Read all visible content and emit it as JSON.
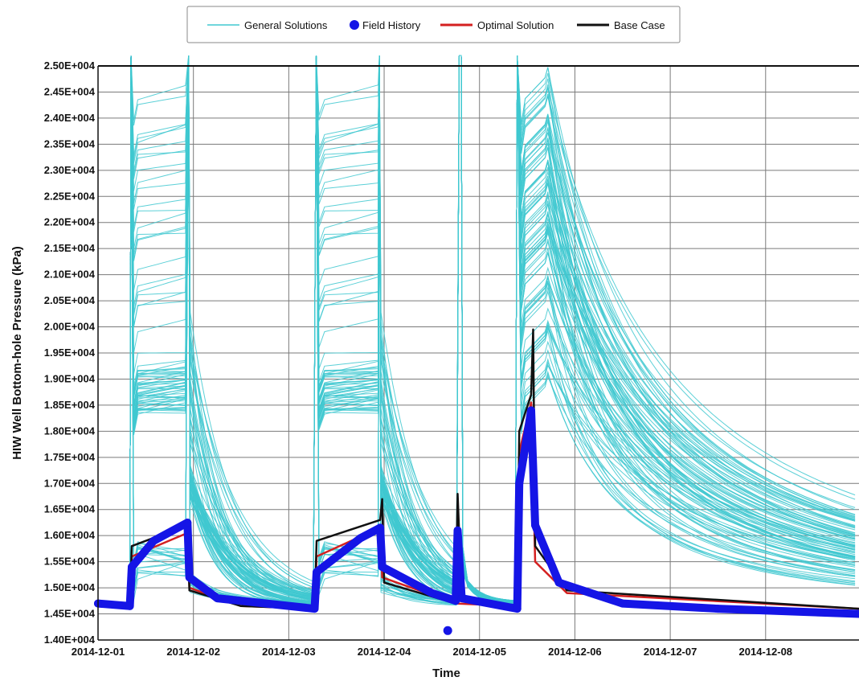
{
  "colors": {
    "general": "#40c8d0",
    "field": "#1515e6",
    "optimal": "#d42020",
    "base": "#111111",
    "grid": "#7a7a7a"
  },
  "legend": {
    "items": [
      {
        "label": "General Solutions",
        "kind": "line",
        "color": "#40c8d0"
      },
      {
        "label": "Field History",
        "kind": "dot",
        "color": "#1515e6"
      },
      {
        "label": "Optimal Solution",
        "kind": "line",
        "color": "#d42020"
      },
      {
        "label": "Base Case",
        "kind": "line",
        "color": "#111111"
      }
    ]
  },
  "chart_data": {
    "type": "line",
    "xlabel": "Time",
    "ylabel": "HIW Well Bottom-hole Pressure (kPa)",
    "ylim": [
      14000,
      25000
    ],
    "xlim": [
      "2014-12-01 00:00",
      "2014-12-08 23:30"
    ],
    "grid": true,
    "legend_position": "top",
    "y_ticks": [
      "1.40E+004",
      "1.45E+004",
      "1.50E+004",
      "1.55E+004",
      "1.60E+004",
      "1.65E+004",
      "1.70E+004",
      "1.75E+004",
      "1.80E+004",
      "1.85E+004",
      "1.90E+004",
      "1.95E+004",
      "2.00E+004",
      "2.05E+004",
      "2.10E+004",
      "2.15E+004",
      "2.20E+004",
      "2.25E+004",
      "2.30E+004",
      "2.35E+004",
      "2.40E+004",
      "2.45E+004",
      "2.50E+004"
    ],
    "x_ticks": [
      "2014-12-01",
      "2014-12-02",
      "2014-12-03",
      "2014-12-04",
      "2014-12-05",
      "2014-12-06",
      "2014-12-07",
      "2014-12-08"
    ],
    "series": [
      {
        "name": "General Solutions",
        "kind": "ensemble",
        "count": 90,
        "pressure_range_kPa": [
          14600,
          25000
        ]
      },
      {
        "name": "Field History",
        "points": [
          [
            "2014-12-01 00:00",
            14700
          ],
          [
            "2014-12-01 08:00",
            14650
          ],
          [
            "2014-12-01 08:30",
            15400
          ],
          [
            "2014-12-01 14:00",
            15900
          ],
          [
            "2014-12-01 22:30",
            16250
          ],
          [
            "2014-12-01 23:00",
            15200
          ],
          [
            "2014-12-02 06:00",
            14800
          ],
          [
            "2014-12-03 06:30",
            14600
          ],
          [
            "2014-12-03 07:00",
            15300
          ],
          [
            "2014-12-03 18:00",
            15950
          ],
          [
            "2014-12-03 23:00",
            16150
          ],
          [
            "2014-12-03 23:30",
            15400
          ],
          [
            "2014-12-04 12:00",
            14900
          ],
          [
            "2014-12-04 18:00",
            14750
          ],
          [
            "2014-12-04 18:30",
            16100
          ],
          [
            "2014-12-04 19:30",
            14800
          ],
          [
            "2014-12-05 09:30",
            14600
          ],
          [
            "2014-12-05 10:00",
            17000
          ],
          [
            "2014-12-05 13:00",
            18400
          ],
          [
            "2014-12-05 14:00",
            16200
          ],
          [
            "2014-12-05 20:00",
            15100
          ],
          [
            "2014-12-06 12:00",
            14700
          ],
          [
            "2014-12-07 12:00",
            14600
          ],
          [
            "2014-12-08 23:30",
            14500
          ]
        ],
        "outlier": [
          "2014-12-04 16:00",
          14180
        ]
      },
      {
        "name": "Optimal Solution",
        "points": [
          [
            "2014-12-01 00:00",
            14700
          ],
          [
            "2014-12-01 08:00",
            14650
          ],
          [
            "2014-12-01 08:30",
            15600
          ],
          [
            "2014-12-01 22:30",
            16050
          ],
          [
            "2014-12-01 23:00",
            15000
          ],
          [
            "2014-12-02 12:00",
            14650
          ],
          [
            "2014-12-03 06:30",
            14600
          ],
          [
            "2014-12-03 07:00",
            15600
          ],
          [
            "2014-12-03 23:00",
            16150
          ],
          [
            "2014-12-03 23:30",
            15200
          ],
          [
            "2014-12-04 18:00",
            14700
          ],
          [
            "2014-12-05 09:30",
            14650
          ],
          [
            "2014-12-05 10:00",
            17600
          ],
          [
            "2014-12-05 13:00",
            18550
          ],
          [
            "2014-12-05 14:00",
            15500
          ],
          [
            "2014-12-05 22:00",
            14900
          ],
          [
            "2014-12-08 23:30",
            14600
          ]
        ]
      },
      {
        "name": "Base Case",
        "points": [
          [
            "2014-12-01 00:00",
            14700
          ],
          [
            "2014-12-01 08:00",
            14650
          ],
          [
            "2014-12-01 08:30",
            15800
          ],
          [
            "2014-12-01 22:30",
            16200
          ],
          [
            "2014-12-01 23:00",
            14950
          ],
          [
            "2014-12-02 12:00",
            14650
          ],
          [
            "2014-12-03 06:30",
            14600
          ],
          [
            "2014-12-03 07:00",
            15900
          ],
          [
            "2014-12-03 23:00",
            16300
          ],
          [
            "2014-12-03 23:30",
            16700
          ],
          [
            "2014-12-04 00:00",
            15100
          ],
          [
            "2014-12-04 18:00",
            14700
          ],
          [
            "2014-12-04 18:30",
            16800
          ],
          [
            "2014-12-04 19:30",
            14800
          ],
          [
            "2014-12-05 09:30",
            14650
          ],
          [
            "2014-12-05 10:00",
            18000
          ],
          [
            "2014-12-05 13:00",
            18700
          ],
          [
            "2014-12-05 13:30",
            19950
          ],
          [
            "2014-12-05 14:00",
            15800
          ],
          [
            "2014-12-05 22:00",
            14950
          ],
          [
            "2014-12-08 23:30",
            14600
          ]
        ]
      }
    ]
  }
}
